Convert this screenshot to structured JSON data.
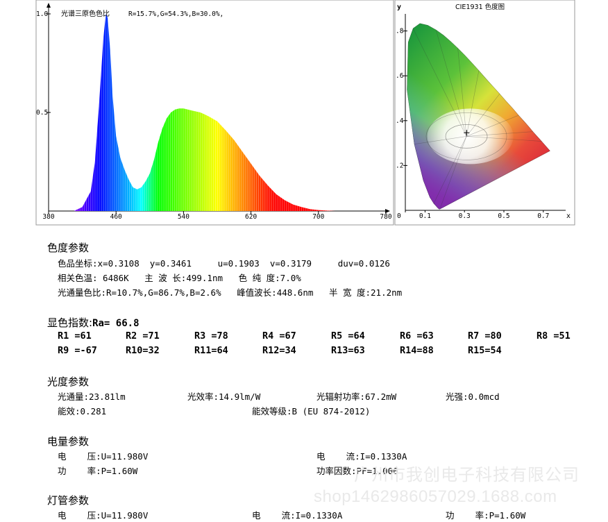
{
  "chart_data": [
    {
      "type": "area",
      "title": "光谱三原色色比",
      "subtitle": "R=15.7%,G=54.3%,B=30.0%,",
      "xlabel": "",
      "ylabel": "",
      "xlim": [
        380,
        780
      ],
      "ylim": [
        0,
        1.0
      ],
      "x_ticks": [
        "380",
        "460",
        "540",
        "620",
        "700",
        "780"
      ],
      "y_ticks": [
        "0.5",
        "1.0"
      ],
      "x": [
        410,
        420,
        430,
        435,
        440,
        445,
        448,
        450,
        453,
        456,
        460,
        465,
        470,
        475,
        480,
        485,
        490,
        495,
        500,
        505,
        510,
        515,
        520,
        525,
        530,
        535,
        540,
        545,
        550,
        555,
        560,
        565,
        570,
        580,
        590,
        600,
        610,
        620,
        630,
        640,
        650,
        660,
        670,
        680,
        690,
        700,
        710,
        720
      ],
      "values": [
        0.0,
        0.02,
        0.1,
        0.25,
        0.55,
        0.88,
        1.0,
        0.98,
        0.82,
        0.58,
        0.38,
        0.27,
        0.21,
        0.16,
        0.12,
        0.11,
        0.12,
        0.15,
        0.19,
        0.26,
        0.35,
        0.42,
        0.47,
        0.5,
        0.515,
        0.52,
        0.52,
        0.515,
        0.51,
        0.505,
        0.5,
        0.49,
        0.48,
        0.455,
        0.41,
        0.36,
        0.3,
        0.24,
        0.18,
        0.13,
        0.085,
        0.055,
        0.033,
        0.02,
        0.01,
        0.005,
        0.002,
        0.0
      ],
      "grid": false
    },
    {
      "type": "scatter",
      "title": "CIE1931 色度图",
      "xlabel": "x",
      "ylabel": "y",
      "xlim": [
        0,
        0.8
      ],
      "ylim": [
        0,
        0.85
      ],
      "x_ticks": [
        "0",
        "0.1",
        "0.3",
        "0.5",
        "0.7"
      ],
      "y_ticks": [
        ".2",
        ".4",
        ".6",
        ".8"
      ],
      "series": [
        {
          "x": [
            0.3108
          ],
          "y": [
            0.3461
          ]
        }
      ],
      "grid": false
    }
  ],
  "sections": {
    "chroma": {
      "title": "色度参数",
      "line1": "色品坐标:x=0.3108  y=0.3461     u=0.1903  v=0.3179     duv=0.0126",
      "line2": "相关色温: 6486K   主 波 长:499.1nm   色 纯 度:7.0%",
      "line3": "光通量色比:R=10.7%,G=86.7%,B=2.6%   峰值波长:448.6nm   半 宽 度:21.2nm"
    },
    "cri": {
      "title": "显色指数:",
      "ra": "Ra= 66.8",
      "row1": [
        "R1 =61",
        "R2 =71",
        "R3 =78",
        "R4 =67",
        "R5 =64",
        "R6 =63",
        "R7 =80",
        "R8 =51"
      ],
      "row2": [
        "R9 =-67",
        "R10=32",
        "R11=64",
        "R12=34",
        "R13=63",
        "R14=88",
        "R15=54"
      ]
    },
    "photo": {
      "title": "光度参数",
      "flux": "光通量:23.81lm",
      "efficacy": "光效率:14.9lm/W",
      "radiant": "光辐射功率:67.2mW",
      "intensity": "光强:0.0mcd",
      "energy_eff": "能效:0.281",
      "energy_class": "能效等级:B (EU 874-2012)"
    },
    "elec": {
      "title": "电量参数",
      "voltage": "电    压:U=11.980V",
      "current": "电    流:I=0.1330A",
      "power": "功    率:P=1.60W",
      "pf": "功率因数:PF=1.000"
    },
    "lamp": {
      "title": "灯管参数",
      "voltage": "电    压:U=11.980V",
      "current": "电    流:I=0.1330A",
      "power": "功    率:P=1.60W"
    }
  },
  "watermark": {
    "line1": "广州市我创电子科技有限公司",
    "line2": "shop1462986057029.1688.com"
  }
}
